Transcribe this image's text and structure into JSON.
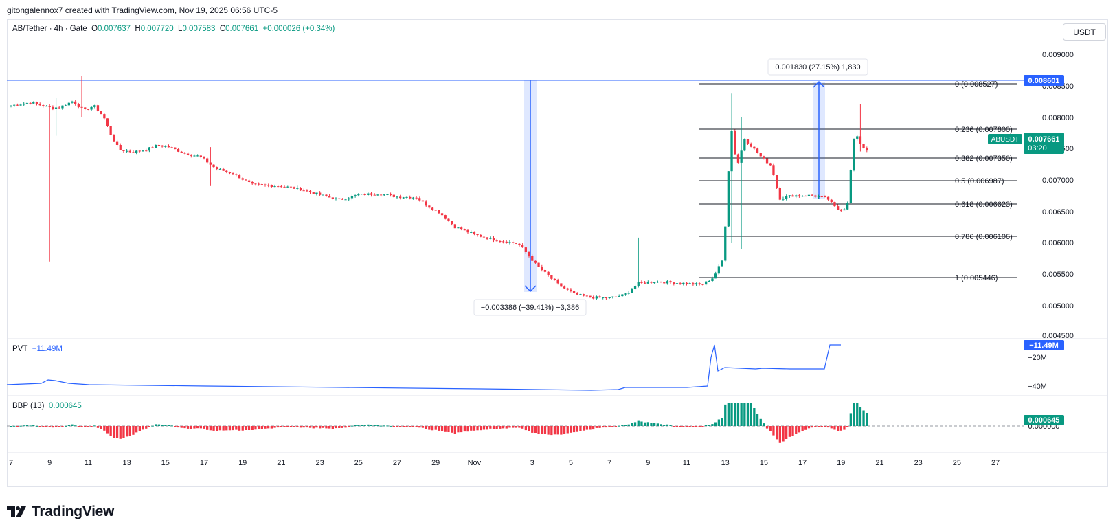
{
  "header": {
    "created_by": "gitongalennox7 created with TradingView.com, Nov 19, 2025 06:56 UTC-5"
  },
  "legend": {
    "symbol": "AB/Tether · 4h · Gate",
    "o_label": "O",
    "o_value": "0.007637",
    "h_label": "H",
    "h_value": "0.007720",
    "l_label": "L",
    "l_value": "0.007583",
    "c_label": "C",
    "c_value": "0.007661",
    "change": "+0.000026 (+0.34%)"
  },
  "currency_button": "USDT",
  "price_axis": {
    "ticks": [
      "0.009000",
      "0.008500",
      "0.008000",
      "0.007500",
      "0.007000",
      "0.006500",
      "0.006000",
      "0.005500",
      "0.005000",
      "0.004500"
    ],
    "values": [
      0.009,
      0.0085,
      0.008,
      0.0075,
      0.007,
      0.0065,
      0.006,
      0.0055,
      0.005,
      0.0045
    ],
    "line_label": "0.008601",
    "last_symbol": "ABUSDT",
    "last_value": "0.007661",
    "countdown": "03:20"
  },
  "time_axis": {
    "labels": [
      "7",
      "9",
      "11",
      "13",
      "15",
      "17",
      "19",
      "21",
      "23",
      "25",
      "27",
      "29",
      "Nov",
      "3",
      "5",
      "7",
      "9",
      "11",
      "13",
      "15",
      "17",
      "19",
      "21",
      "23",
      "25",
      "27"
    ]
  },
  "measure_down": {
    "label": "−0.003386 (−39.41%) −3,386"
  },
  "measure_up": {
    "label": "0.001830 (27.15%) 1,830"
  },
  "fib_levels": [
    {
      "label": "0 (0.008527)",
      "price": 0.008527
    },
    {
      "label": "0.236 (0.007800)",
      "price": 0.0078
    },
    {
      "label": "0.382 (0.007350)",
      "price": 0.00735
    },
    {
      "label": "0.5 (0.006987)",
      "price": 0.006987
    },
    {
      "label": "0.618 (0.006623)",
      "price": 0.006623
    },
    {
      "label": "0.786 (0.006106)",
      "price": 0.006106
    },
    {
      "label": "1 (0.005446)",
      "price": 0.005446
    }
  ],
  "pvt": {
    "name": "PVT",
    "value": "−11.49M",
    "axis_ticks": [
      "−20M",
      "−40M"
    ],
    "axis_values": [
      -20,
      -40
    ],
    "last_label": "−11.49M"
  },
  "bbp": {
    "name": "BBP (13)",
    "value": "0.000645",
    "axis_tick": "0.000000",
    "last_label": "0.000645"
  },
  "brand": {
    "name": "TradingView"
  },
  "colors": {
    "up": "#089981",
    "down": "#f23645",
    "line": "#2962ff",
    "grid": "#e0e3eb",
    "text": "#131722"
  },
  "chart_data": {
    "type": "candlestick",
    "timeframe": "4h",
    "x_labels": [
      "7",
      "9",
      "11",
      "13",
      "15",
      "17",
      "19",
      "21",
      "23",
      "25",
      "27",
      "29",
      "Nov",
      "3",
      "5",
      "7",
      "9",
      "11",
      "13",
      "15",
      "17",
      "19",
      "21",
      "23",
      "25",
      "27"
    ],
    "ylim": [
      0.0045,
      0.0091
    ],
    "horizontal_line": 0.008601,
    "last_price": 0.007661,
    "close_path_day_index": [
      [
        0,
        0.00838
      ],
      [
        1,
        0.00843
      ],
      [
        2,
        0.00835
      ],
      [
        2.5,
        0.00835
      ],
      [
        3.2,
        0.00845
      ],
      [
        3.8,
        0.0083
      ],
      [
        4.3,
        0.00838
      ],
      [
        4.8,
        0.0082
      ],
      [
        5.2,
        0.0079
      ],
      [
        5.6,
        0.00768
      ],
      [
        6.3,
        0.00764
      ],
      [
        7,
        0.00768
      ],
      [
        7.6,
        0.00775
      ],
      [
        8.2,
        0.00772
      ],
      [
        9,
        0.00762
      ],
      [
        9.8,
        0.00757
      ],
      [
        10.6,
        0.00738
      ],
      [
        11.5,
        0.0073
      ],
      [
        12.5,
        0.00712
      ],
      [
        13.3,
        0.00711
      ],
      [
        14,
        0.0071
      ],
      [
        15,
        0.00705
      ],
      [
        16,
        0.00696
      ],
      [
        17,
        0.00688
      ],
      [
        18,
        0.00696
      ],
      [
        19,
        0.00698
      ],
      [
        20,
        0.00693
      ],
      [
        21,
        0.00692
      ],
      [
        21.6,
        0.00678
      ],
      [
        22.2,
        0.00668
      ],
      [
        23,
        0.00645
      ],
      [
        24,
        0.00633
      ],
      [
        25,
        0.00625
      ],
      [
        26.3,
        0.00618
      ],
      [
        26.8,
        0.006
      ],
      [
        27.2,
        0.00585
      ],
      [
        27.8,
        0.00568
      ],
      [
        28.4,
        0.00552
      ],
      [
        29.2,
        0.00538
      ],
      [
        30,
        0.00533
      ],
      [
        31,
        0.00532
      ],
      [
        31.8,
        0.00537
      ],
      [
        32.5,
        0.00555
      ],
      [
        33.3,
        0.00558
      ],
      [
        34,
        0.00557
      ],
      [
        35,
        0.00555
      ],
      [
        35.8,
        0.00553
      ],
      [
        36.4,
        0.00565
      ],
      [
        36.9,
        0.00595
      ],
      [
        37.3,
        0.00805
      ],
      [
        37.6,
        0.0074
      ],
      [
        38,
        0.00785
      ],
      [
        38.4,
        0.00772
      ],
      [
        38.9,
        0.00755
      ],
      [
        39.4,
        0.00742
      ],
      [
        39.8,
        0.0069
      ],
      [
        40.5,
        0.00695
      ],
      [
        41.5,
        0.00695
      ],
      [
        42.3,
        0.0069
      ],
      [
        42.8,
        0.00672
      ],
      [
        43.3,
        0.00675
      ],
      [
        43.7,
        0.00795
      ],
      [
        44.1,
        0.00772
      ],
      [
        44.4,
        0.00766
      ]
    ]
  }
}
